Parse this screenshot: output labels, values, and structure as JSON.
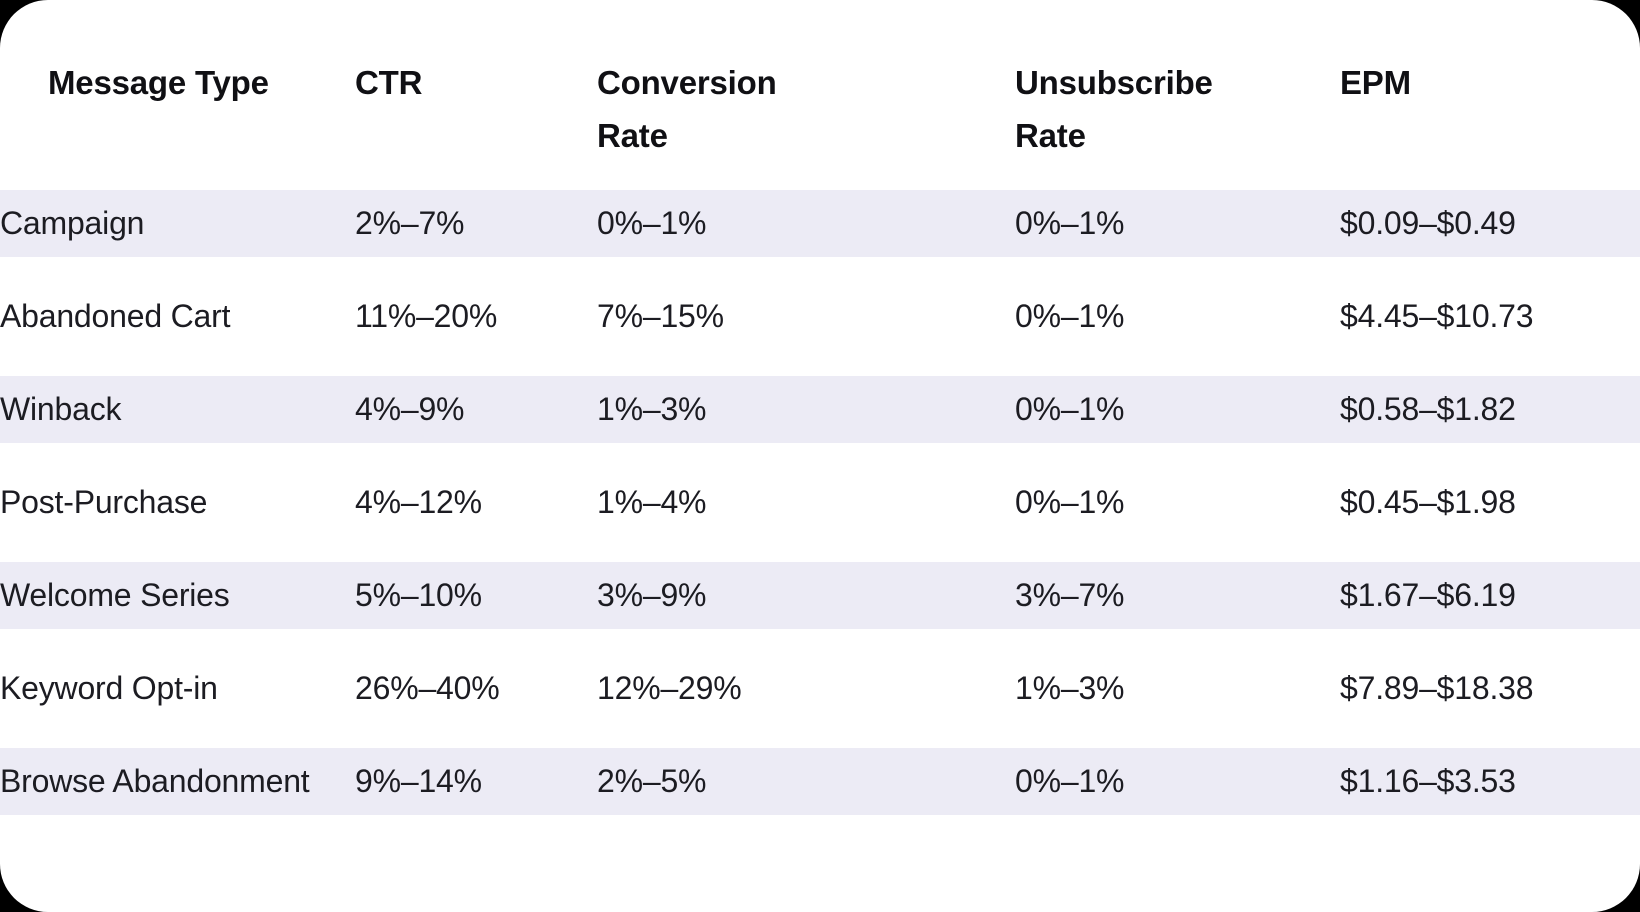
{
  "theme": {
    "page_background": "#000000",
    "card_background": "#ffffff",
    "stripe_background": "#ecebf5",
    "header_text_color": "#101014",
    "body_text_color": "#1c1c22"
  },
  "table": {
    "header_display": [
      "Message Type",
      "CTR",
      "Conversion\nRate",
      "Unsubscribe\nRate",
      "EPM"
    ]
  },
  "chart_data": {
    "type": "table",
    "title": "",
    "columns": [
      "Message Type",
      "CTR",
      "Conversion Rate",
      "Unsubscribe Rate",
      "EPM"
    ],
    "rows": [
      [
        "Campaign",
        "2%–7%",
        "0%–1%",
        "0%–1%",
        "$0.09–$0.49"
      ],
      [
        "Abandoned Cart",
        "11%–20%",
        "7%–15%",
        "0%–1%",
        "$4.45–$10.73"
      ],
      [
        "Winback",
        "4%–9%",
        "1%–3%",
        "0%–1%",
        "$0.58–$1.82"
      ],
      [
        "Post-Purchase",
        "4%–12%",
        "1%–4%",
        "0%–1%",
        "$0.45–$1.98"
      ],
      [
        "Welcome Series",
        "5%–10%",
        "3%–9%",
        "3%–7%",
        "$1.67–$6.19"
      ],
      [
        "Keyword Opt-in",
        "26%–40%",
        "12%–29%",
        "1%–3%",
        "$7.89–$18.38"
      ],
      [
        "Browse Abandonment",
        "9%–14%",
        "2%–5%",
        "0%–1%",
        "$1.16–$3.53"
      ]
    ],
    "layout": {
      "striped_rows": "odd rows highlighted (1st, 3rd, 5th, 7th)",
      "grid": "off",
      "legend": "none"
    }
  }
}
